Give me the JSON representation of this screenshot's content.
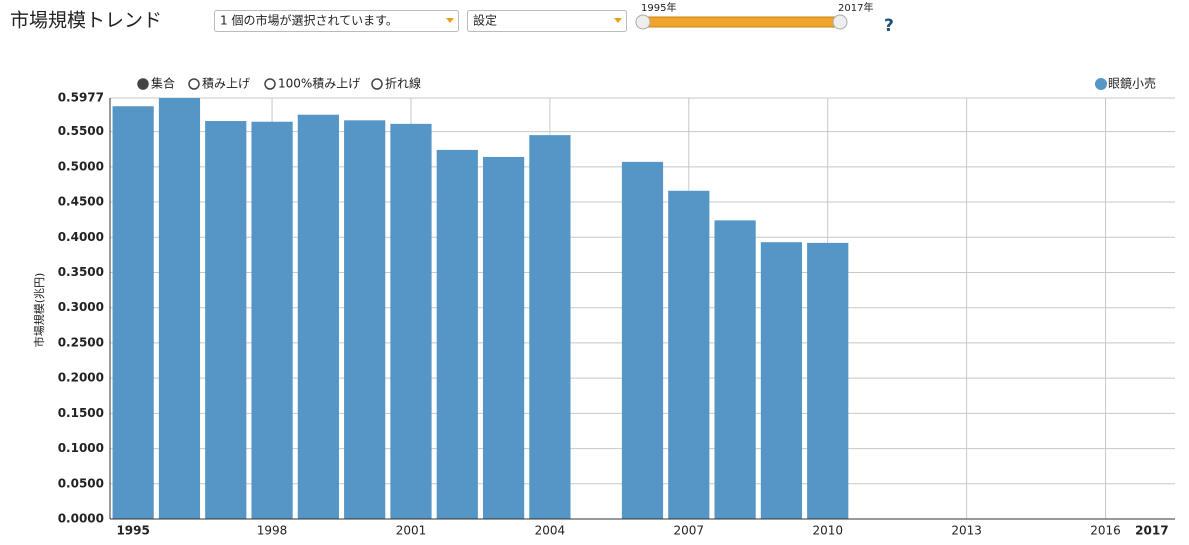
{
  "header": {
    "title": "市場規模トレンド",
    "market_select": "1 個の市場が選択されています。",
    "settings_select": "設定",
    "range_start_label": "1995年",
    "range_end_label": "2017年",
    "help": "?"
  },
  "chart_modes": {
    "options": [
      "集合",
      "積み上げ",
      "100%積み上げ",
      "折れ線"
    ],
    "selected": 0
  },
  "chart_data": {
    "type": "bar",
    "y_label": "市場規模(兆円)",
    "x": [
      1995,
      1996,
      1997,
      1998,
      1999,
      2000,
      2001,
      2002,
      2003,
      2004,
      2006,
      2007,
      2008,
      2009,
      2010
    ],
    "series": [
      {
        "name": "眼鏡小売",
        "color": "#5596c6",
        "values": [
          0.586,
          0.5977,
          0.565,
          0.564,
          0.574,
          0.566,
          0.561,
          0.524,
          0.514,
          0.545,
          0.507,
          0.466,
          0.424,
          0.393,
          0.392
        ]
      }
    ],
    "xlim": [
      1994.5,
      2017.5
    ],
    "xticks": [
      1995,
      1998,
      2001,
      2004,
      2007,
      2010,
      2013,
      2016,
      2017
    ],
    "ylim": [
      0,
      0.5977
    ],
    "yticks": [
      {
        "value": 0,
        "label": "0.0000"
      },
      {
        "value": 0.05,
        "label": "0.0500"
      },
      {
        "value": 0.1,
        "label": "0.1000"
      },
      {
        "value": 0.15,
        "label": "0.1500"
      },
      {
        "value": 0.2,
        "label": "0.2000"
      },
      {
        "value": 0.25,
        "label": "0.2500"
      },
      {
        "value": 0.3,
        "label": "0.3000"
      },
      {
        "value": 0.35,
        "label": "0.3500"
      },
      {
        "value": 0.4,
        "label": "0.4000"
      },
      {
        "value": 0.45,
        "label": "0.4500"
      },
      {
        "value": 0.5,
        "label": "0.5000"
      },
      {
        "value": 0.55,
        "label": "0.5500"
      },
      {
        "value": 0.5977,
        "label": "0.5977"
      }
    ],
    "grid": true,
    "legend": "top-right"
  }
}
